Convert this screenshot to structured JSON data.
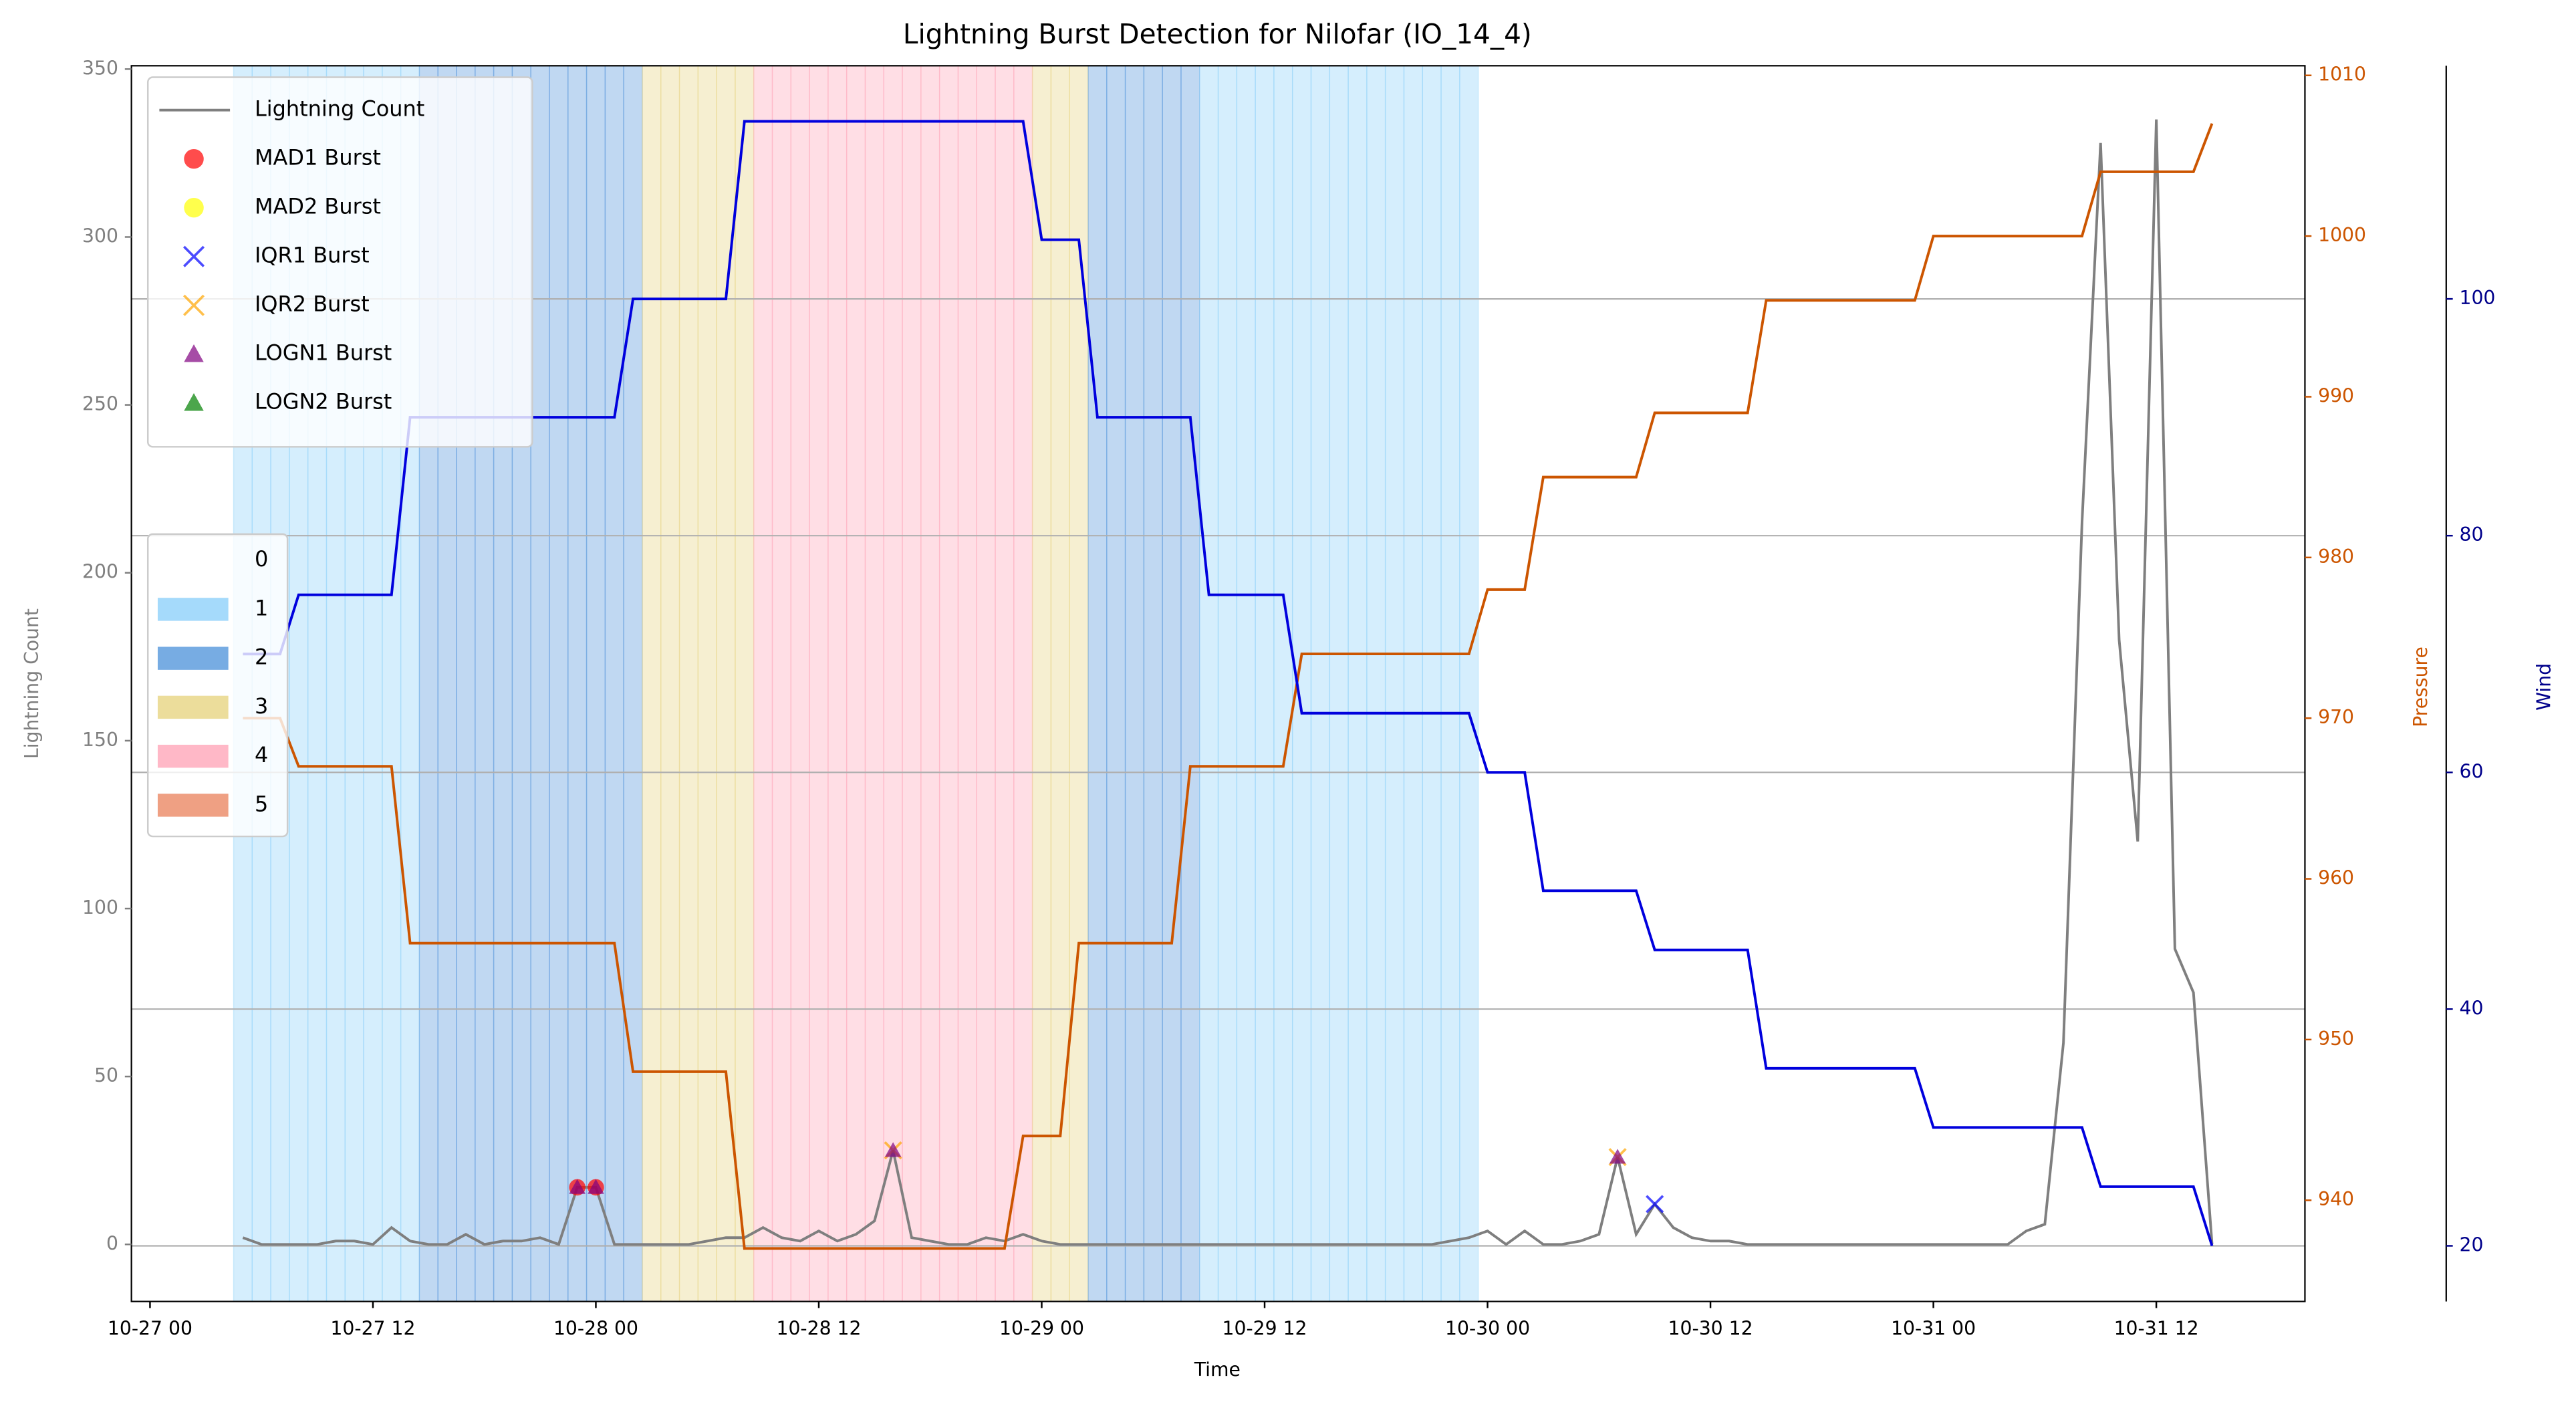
{
  "chart_data": {
    "type": "line",
    "title": "Lightning Burst Detection for Nilofar (IO_14_4)",
    "xlabel": "Time",
    "ylabel": "Lightning Count",
    "x": [
      "10-27 05",
      "10-27 06",
      "10-27 07",
      "10-27 08",
      "10-27 09",
      "10-27 10",
      "10-27 11",
      "10-27 12",
      "10-27 13",
      "10-27 14",
      "10-27 15",
      "10-27 16",
      "10-27 17",
      "10-27 18",
      "10-27 19",
      "10-27 20",
      "10-27 21",
      "10-27 22",
      "10-27 23",
      "10-28 00",
      "10-28 01",
      "10-28 02",
      "10-28 03",
      "10-28 04",
      "10-28 05",
      "10-28 06",
      "10-28 07",
      "10-28 08",
      "10-28 09",
      "10-28 10",
      "10-28 11",
      "10-28 12",
      "10-28 13",
      "10-28 14",
      "10-28 15",
      "10-28 16",
      "10-28 17",
      "10-28 18",
      "10-28 19",
      "10-28 20",
      "10-28 21",
      "10-28 22",
      "10-28 23",
      "10-29 00",
      "10-29 01",
      "10-29 02",
      "10-29 03",
      "10-29 04",
      "10-29 05",
      "10-29 06",
      "10-29 07",
      "10-29 08",
      "10-29 09",
      "10-29 10",
      "10-29 11",
      "10-29 12",
      "10-29 13",
      "10-29 14",
      "10-29 15",
      "10-29 16",
      "10-29 17",
      "10-29 18",
      "10-29 19",
      "10-29 20",
      "10-29 21",
      "10-29 22",
      "10-29 23",
      "10-30 00",
      "10-30 01",
      "10-30 02",
      "10-30 03",
      "10-30 04",
      "10-30 05",
      "10-30 06",
      "10-30 07",
      "10-30 08",
      "10-30 09",
      "10-30 10",
      "10-30 11",
      "10-30 12",
      "10-30 13",
      "10-30 14",
      "10-30 15",
      "10-30 16",
      "10-30 17",
      "10-30 18",
      "10-30 19",
      "10-30 20",
      "10-30 21",
      "10-30 22",
      "10-30 23",
      "10-31 00",
      "10-31 01",
      "10-31 02",
      "10-31 03",
      "10-31 04",
      "10-31 05",
      "10-31 06",
      "10-31 07",
      "10-31 08",
      "10-31 09",
      "10-31 10",
      "10-31 11",
      "10-31 12",
      "10-31 13",
      "10-31 14",
      "10-31 15"
    ],
    "xlim": [
      "10-26 23",
      "10-31 20"
    ],
    "xticks": [
      "10-27 00",
      "10-27 12",
      "10-28 00",
      "10-28 12",
      "10-29 00",
      "10-29 12",
      "10-30 00",
      "10-30 12",
      "10-31 00",
      "10-31 12"
    ],
    "ylim": [
      -17,
      351
    ],
    "yticks": [
      0,
      50,
      100,
      150,
      200,
      250,
      300,
      350
    ],
    "y2lim": [
      933.7,
      1010.6
    ],
    "y2ticks": [
      940,
      950,
      960,
      970,
      980,
      990,
      1000,
      1010
    ],
    "y3lim": [
      15.3,
      119.7
    ],
    "y3ticks": [
      20,
      40,
      60,
      80,
      100
    ],
    "grid": "y3",
    "series": [
      {
        "name": "Lightning Count",
        "color": "#7f7f7f",
        "axis": "y",
        "values": [
          2,
          0,
          0,
          0,
          0,
          1,
          1,
          0,
          5,
          1,
          0,
          0,
          3,
          0,
          1,
          1,
          2,
          0,
          17,
          17,
          0,
          0,
          0,
          0,
          0,
          1,
          2,
          2,
          5,
          2,
          1,
          4,
          1,
          3,
          7,
          28,
          2,
          1,
          0,
          0,
          2,
          1,
          3,
          1,
          0,
          0,
          0,
          0,
          0,
          0,
          0,
          0,
          0,
          0,
          0,
          0,
          0,
          0,
          0,
          0,
          0,
          0,
          0,
          0,
          0,
          1,
          2,
          4,
          0,
          4,
          0,
          0,
          1,
          3,
          26,
          3,
          12,
          5,
          2,
          1,
          1,
          0,
          0,
          0,
          0,
          0,
          0,
          0,
          0,
          0,
          0,
          0,
          0,
          0,
          0,
          0,
          4,
          6,
          60,
          215,
          328,
          180,
          120,
          335,
          88,
          75,
          0
        ]
      },
      {
        "name": "Pressure",
        "color": "#cc5500",
        "axis": "y2",
        "values": [
          970,
          970,
          970,
          967,
          967,
          967,
          967,
          967,
          967,
          956,
          956,
          956,
          956,
          956,
          956,
          956,
          956,
          956,
          956,
          956,
          956,
          948,
          948,
          948,
          948,
          948,
          948,
          937,
          937,
          937,
          937,
          937,
          937,
          937,
          937,
          937,
          937,
          937,
          937,
          937,
          937,
          937,
          944,
          944,
          944,
          956,
          956,
          956,
          956,
          956,
          956,
          967,
          967,
          967,
          967,
          967,
          967,
          974,
          974,
          974,
          974,
          974,
          974,
          974,
          974,
          974,
          974,
          978,
          978,
          978,
          985,
          985,
          985,
          985,
          985,
          985,
          989,
          989,
          989,
          989,
          989,
          989,
          996,
          996,
          996,
          996,
          996,
          996,
          996,
          996,
          996,
          1000,
          1000,
          1000,
          1000,
          1000,
          1000,
          1000,
          1000,
          1000,
          1004,
          1004,
          1004,
          1004,
          1004,
          1004,
          1007
        ]
      },
      {
        "name": "Wind",
        "color": "#0000dd",
        "axis": "y3",
        "values": [
          70,
          70,
          70,
          75,
          75,
          75,
          75,
          75,
          75,
          90,
          90,
          90,
          90,
          90,
          90,
          90,
          90,
          90,
          90,
          90,
          90,
          100,
          100,
          100,
          100,
          100,
          100,
          115,
          115,
          115,
          115,
          115,
          115,
          115,
          115,
          115,
          115,
          115,
          115,
          115,
          115,
          115,
          115,
          105,
          105,
          105,
          90,
          90,
          90,
          90,
          90,
          90,
          75,
          75,
          75,
          75,
          75,
          65,
          65,
          65,
          65,
          65,
          65,
          65,
          65,
          65,
          65,
          60,
          60,
          60,
          50,
          50,
          50,
          50,
          50,
          50,
          45,
          45,
          45,
          45,
          45,
          45,
          35,
          35,
          35,
          35,
          35,
          35,
          35,
          35,
          35,
          30,
          30,
          30,
          30,
          30,
          30,
          30,
          30,
          30,
          25,
          25,
          25,
          25,
          25,
          25,
          20
        ]
      }
    ],
    "bursts": [
      {
        "name": "MAD1 Burst",
        "color": "#ff0000",
        "marker": "circle",
        "x": [
          "10-27 23",
          "10-28 00"
        ],
        "values": [
          17,
          17
        ]
      },
      {
        "name": "MAD2 Burst",
        "color": "#ffff00",
        "marker": "circle",
        "x": [],
        "values": []
      },
      {
        "name": "IQR1 Burst",
        "color": "#0000ff",
        "marker": "x",
        "x": [
          "10-30 09"
        ],
        "values": [
          12
        ]
      },
      {
        "name": "IQR2 Burst",
        "color": "#ffa500",
        "marker": "x",
        "x": [
          "10-28 16",
          "10-30 07"
        ],
        "values": [
          28,
          26
        ]
      },
      {
        "name": "LOGN1 Burst",
        "color": "#800080",
        "marker": "triangle",
        "x": [
          "10-27 23",
          "10-28 00",
          "10-28 16",
          "10-30 07"
        ],
        "values": [
          17,
          17,
          28,
          26
        ]
      },
      {
        "name": "LOGN2 Burst",
        "color": "#008000",
        "marker": "triangle",
        "x": [],
        "values": []
      }
    ],
    "background": {
      "labels": [
        0,
        1,
        2,
        3,
        4,
        5
      ],
      "colors": [
        "#ffffff",
        "#87cefa",
        "#4a90d9",
        "#e6d27a",
        "#ffa0b4",
        "#e9805a"
      ],
      "values": [
        1,
        1,
        1,
        1,
        1,
        1,
        1,
        1,
        1,
        1,
        2,
        2,
        2,
        2,
        2,
        2,
        2,
        2,
        2,
        2,
        2,
        2,
        3,
        3,
        3,
        3,
        3,
        3,
        4,
        4,
        4,
        4,
        4,
        4,
        4,
        4,
        4,
        4,
        4,
        4,
        4,
        4,
        4,
        3,
        3,
        3,
        2,
        2,
        2,
        2,
        2,
        2,
        1,
        1,
        1,
        1,
        1,
        1,
        1,
        1,
        1,
        1,
        1,
        1,
        1,
        1,
        1,
        0,
        0,
        0,
        0,
        0,
        0,
        0,
        0,
        0,
        0,
        0,
        0,
        0,
        0,
        0,
        0,
        0,
        0,
        0,
        0,
        0,
        0,
        0,
        0,
        0,
        0,
        0,
        0,
        0,
        0,
        0,
        0,
        0,
        0,
        0,
        0,
        0,
        0,
        0,
        0
      ]
    }
  }
}
